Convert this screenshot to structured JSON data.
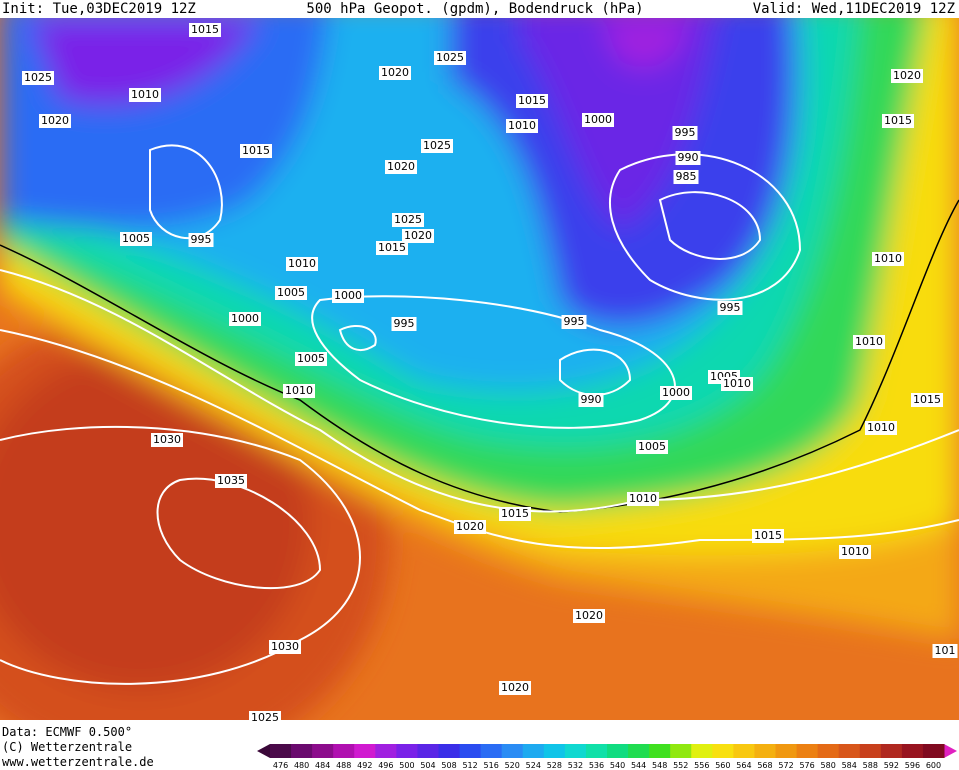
{
  "header": {
    "init": "Init: Tue,03DEC2019 12Z",
    "title": "500 hPa Geopot. (gpdm), Bodendruck (hPa)",
    "valid": "Valid: Wed,11DEC2019 12Z"
  },
  "isobar_labels": [
    "1015",
    "1025",
    "1020",
    "1025",
    "1010",
    "1020",
    "1015",
    "1010",
    "1000",
    "1015",
    "1025",
    "995",
    "990",
    "985",
    "1020",
    "1005",
    "995",
    "1025",
    "1020",
    "1015",
    "1010",
    "1005",
    "1000",
    "1000",
    "995",
    "995",
    "995",
    "1005",
    "1010",
    "990",
    "1000",
    "1005",
    "1010",
    "1030",
    "1005",
    "1035",
    "1010",
    "1015",
    "1020",
    "1015",
    "1010",
    "1020",
    "1030",
    "1020",
    "1025",
    "1020",
    "1015",
    "1010",
    "1010",
    "1015",
    "1010",
    "101"
  ],
  "footer": {
    "data": "Data: ECMWF   0.500°",
    "copyright": "(C) Wetterzentrale",
    "url": "www.wetterzentrale.de"
  },
  "colorbar": {
    "levels": [
      476,
      480,
      484,
      488,
      492,
      496,
      500,
      504,
      508,
      512,
      516,
      520,
      524,
      528,
      532,
      536,
      540,
      544,
      548,
      552,
      556,
      560,
      564,
      568,
      572,
      576,
      580,
      584,
      588,
      592,
      596,
      600
    ],
    "colors": [
      "#4b0a4a",
      "#6a0a6e",
      "#8c0c8c",
      "#b010b0",
      "#d01ad0",
      "#a020e0",
      "#7a22e8",
      "#5a26e6",
      "#3a2ee8",
      "#2a4cf0",
      "#2a6cf4",
      "#2a8cf4",
      "#1eaaf0",
      "#10c4e8",
      "#10d8d0",
      "#10e0a8",
      "#10dc80",
      "#20dc50",
      "#40e020",
      "#90e810",
      "#e0f010",
      "#f8e010",
      "#f8c810",
      "#f4b010",
      "#f09810",
      "#ec8012",
      "#e46a16",
      "#d8561a",
      "#c8401c",
      "#b02820",
      "#981420",
      "#800a20"
    ]
  }
}
